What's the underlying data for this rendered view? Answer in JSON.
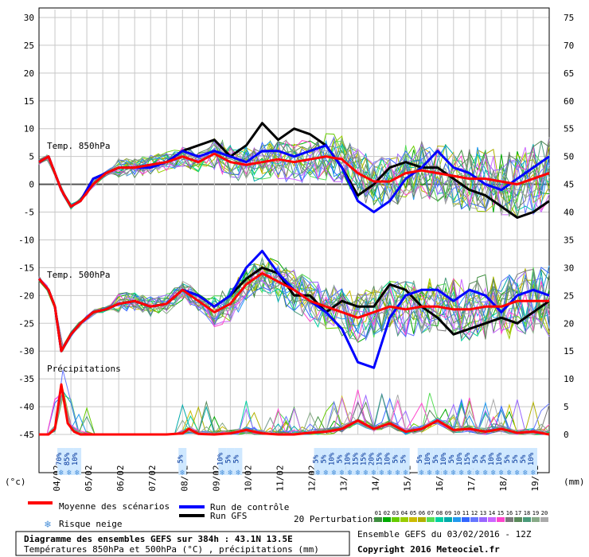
{
  "header": {
    "ylabel_left": "(°c)",
    "ylabel_right": "(mm)"
  },
  "panel_labels": {
    "t850": "Temp. 850hPa",
    "t500": "Temp. 500hPa",
    "precip": "Précipitations"
  },
  "legend": {
    "mean": "Moyenne des scénarios",
    "control": "Run de contrôle",
    "gfs": "Run GFS",
    "snow": "Risque neige",
    "perturbations": "20 Perturbations",
    "pert_ids": [
      "01",
      "02",
      "03",
      "04",
      "05",
      "06",
      "07",
      "08",
      "09",
      "10",
      "11",
      "12",
      "13",
      "14",
      "15",
      "16",
      "17",
      "18",
      "19",
      "20"
    ]
  },
  "footer": {
    "title": "Diagramme des ensembles GEFS sur 384h : 43.1N 13.5E",
    "subtitle": "Températures 850hPa et 500hPa (°C) , précipitations (mm)",
    "run": "Ensemble GEFS du 03/02/2016 - 12Z",
    "copyright": "Copyright 2016 Meteociel.fr"
  },
  "colors": {
    "mean": "#ff0000",
    "control": "#0000ff",
    "gfs": "#000000"
  },
  "chart_data": {
    "type": "line",
    "x_labels": [
      "04/02",
      "05/02",
      "06/02",
      "07/02",
      "08/02",
      "09/02",
      "10/02",
      "11/02",
      "12/02",
      "13/02",
      "14/02",
      "15/02",
      "16/02",
      "17/02",
      "18/02",
      "19/02"
    ],
    "x_day_start": 3.5,
    "x_day_end": 19.5,
    "ylim_left": [
      -45,
      30
    ],
    "yticks_left": [
      30,
      25,
      20,
      15,
      10,
      5,
      0,
      -5,
      -10,
      -15,
      -20,
      -25,
      -30,
      -35,
      -40,
      -45
    ],
    "yticks_right": [
      75,
      70,
      65,
      60,
      55,
      50,
      45,
      40,
      35,
      30,
      25,
      20,
      15,
      10,
      5,
      0
    ],
    "snow_risk": [
      {
        "day": 4.2,
        "pct": "70%"
      },
      {
        "day": 4.45,
        "pct": "85%"
      },
      {
        "day": 4.7,
        "pct": "10%"
      },
      {
        "day": 8.0,
        "pct": "5%"
      },
      {
        "day": 9.25,
        "pct": "10%"
      },
      {
        "day": 9.5,
        "pct": "5%"
      },
      {
        "day": 9.75,
        "pct": "5%"
      },
      {
        "day": 12.25,
        "pct": "5%"
      },
      {
        "day": 12.5,
        "pct": "5%"
      },
      {
        "day": 12.75,
        "pct": "10%"
      },
      {
        "day": 13.0,
        "pct": "5%"
      },
      {
        "day": 13.25,
        "pct": "10%"
      },
      {
        "day": 13.5,
        "pct": "15%"
      },
      {
        "day": 13.75,
        "pct": "15%"
      },
      {
        "day": 14.0,
        "pct": "20%"
      },
      {
        "day": 14.25,
        "pct": "15%"
      },
      {
        "day": 14.5,
        "pct": "10%"
      },
      {
        "day": 14.75,
        "pct": "5%"
      },
      {
        "day": 15.0,
        "pct": "5%"
      },
      {
        "day": 15.5,
        "pct": "5%"
      },
      {
        "day": 15.75,
        "pct": "10%"
      },
      {
        "day": 16.0,
        "pct": "5%"
      },
      {
        "day": 16.25,
        "pct": "10%"
      },
      {
        "day": 16.5,
        "pct": "5%"
      },
      {
        "day": 16.75,
        "pct": "10%"
      },
      {
        "day": 17.0,
        "pct": "15%"
      },
      {
        "day": 17.25,
        "pct": "5%"
      },
      {
        "day": 17.5,
        "pct": "5%"
      },
      {
        "day": 17.75,
        "pct": "10%"
      },
      {
        "day": 18.0,
        "pct": "10%"
      },
      {
        "day": 18.25,
        "pct": "5%"
      },
      {
        "day": 18.5,
        "pct": "5%"
      },
      {
        "day": 18.75,
        "pct": "5%"
      },
      {
        "day": 19.0,
        "pct": "10%"
      }
    ],
    "series": [
      {
        "name": "Moyenne des scénarios",
        "panel": "t850",
        "days": [
          3.5,
          3.8,
          4.2,
          4.5,
          4.8,
          5.2,
          5.6,
          6.0,
          6.5,
          7.0,
          7.5,
          8.0,
          8.5,
          9.0,
          9.5,
          10.0,
          10.5,
          11.0,
          11.5,
          12.0,
          12.5,
          13.0,
          13.5,
          14.0,
          14.5,
          15.0,
          15.5,
          16.0,
          16.5,
          17.0,
          17.5,
          18.0,
          18.5,
          19.0,
          19.5
        ],
        "values": [
          4,
          5,
          -1,
          -4,
          -3,
          0,
          2,
          3,
          3,
          3.5,
          4,
          5,
          4,
          5.5,
          4,
          3.5,
          4,
          4.5,
          4,
          4.5,
          5,
          4.5,
          2,
          0.5,
          0.5,
          2,
          2.5,
          2,
          1.5,
          1,
          1,
          0.5,
          0,
          1,
          2
        ]
      },
      {
        "name": "Run de contrôle",
        "panel": "t850",
        "days": [
          3.5,
          3.8,
          4.2,
          4.5,
          4.8,
          5.2,
          5.6,
          6.0,
          6.5,
          7.0,
          7.5,
          8.0,
          8.5,
          9.0,
          9.5,
          10.0,
          10.5,
          11.0,
          11.5,
          12.0,
          12.5,
          13.0,
          13.5,
          14.0,
          14.5,
          15.0,
          15.5,
          16.0,
          16.5,
          17.0,
          17.5,
          18.0,
          18.5,
          19.0,
          19.5
        ],
        "values": [
          4,
          5,
          -1,
          -4,
          -3,
          1,
          2,
          3,
          3,
          3,
          4,
          6,
          5,
          6,
          5,
          4,
          6,
          6,
          5,
          6,
          7,
          3,
          -3,
          -5,
          -3,
          1,
          3,
          6,
          3,
          2,
          0,
          -1,
          1,
          3,
          5
        ]
      },
      {
        "name": "Run GFS",
        "panel": "t850",
        "days": [
          3.5,
          3.8,
          4.2,
          4.5,
          4.8,
          5.2,
          5.6,
          6.0,
          6.5,
          7.0,
          7.5,
          8.0,
          8.5,
          9.0,
          9.5,
          10.0,
          10.5,
          11.0,
          11.5,
          12.0,
          12.5,
          13.0,
          13.5,
          14.0,
          14.5,
          15.0,
          15.5,
          16.0,
          16.5,
          17.0,
          17.5,
          18.0,
          18.5,
          19.0,
          19.5
        ],
        "values": [
          4,
          5,
          -1,
          -4,
          -3,
          1,
          2,
          3,
          3,
          3.5,
          4,
          6,
          7,
          8,
          5,
          7,
          11,
          8,
          10,
          9,
          7,
          3,
          -2,
          0,
          3,
          4,
          3,
          3,
          1,
          -1,
          -2,
          -4,
          -6,
          -5,
          -3
        ]
      },
      {
        "name": "Moyenne des scénarios",
        "panel": "t500",
        "days": [
          3.5,
          3.8,
          4.0,
          4.2,
          4.5,
          4.8,
          5.2,
          5.6,
          6.0,
          6.5,
          7.0,
          7.5,
          8.0,
          8.5,
          9.0,
          9.5,
          10.0,
          10.5,
          11.0,
          11.5,
          12.0,
          12.5,
          13.0,
          13.5,
          14.0,
          14.5,
          15.0,
          15.5,
          16.0,
          16.5,
          17.0,
          17.5,
          18.0,
          18.5,
          19.0,
          19.5
        ],
        "values": [
          -17,
          -19,
          -22,
          -30,
          -27,
          -25,
          -23,
          -22.5,
          -21.5,
          -21,
          -22,
          -21.5,
          -19,
          -21,
          -23,
          -21.5,
          -18,
          -16,
          -17.5,
          -19,
          -21,
          -22,
          -23,
          -24,
          -23,
          -22,
          -22.5,
          -22,
          -22,
          -22.5,
          -22.5,
          -22,
          -22,
          -21,
          -21,
          -21
        ]
      },
      {
        "name": "Run de contrôle",
        "panel": "t500",
        "days": [
          3.5,
          3.8,
          4.0,
          4.2,
          4.5,
          4.8,
          5.2,
          5.6,
          6.0,
          6.5,
          7.0,
          7.5,
          8.0,
          8.5,
          9.0,
          9.5,
          10.0,
          10.5,
          11.0,
          11.5,
          12.0,
          12.5,
          13.0,
          13.5,
          14.0,
          14.5,
          15.0,
          15.5,
          16.0,
          16.5,
          17.0,
          17.5,
          18.0,
          18.5,
          19.0,
          19.5
        ],
        "values": [
          -17,
          -19,
          -22,
          -30,
          -27,
          -25,
          -23,
          -22.5,
          -21.5,
          -21,
          -22,
          -21.5,
          -19,
          -20,
          -22,
          -20,
          -15,
          -12,
          -16,
          -19,
          -21,
          -23,
          -26,
          -32,
          -33,
          -24,
          -20,
          -19,
          -19,
          -21,
          -19,
          -20,
          -23,
          -20,
          -19,
          -20
        ]
      },
      {
        "name": "Run GFS",
        "panel": "t500",
        "days": [
          3.5,
          3.8,
          4.0,
          4.2,
          4.5,
          4.8,
          5.2,
          5.6,
          6.0,
          6.5,
          7.0,
          7.5,
          8.0,
          8.5,
          9.0,
          9.5,
          10.0,
          10.5,
          11.0,
          11.5,
          12.0,
          12.5,
          13.0,
          13.5,
          14.0,
          14.5,
          15.0,
          15.5,
          16.0,
          16.5,
          17.0,
          17.5,
          18.0,
          18.5,
          19.0,
          19.5
        ],
        "values": [
          -17,
          -19,
          -22,
          -30,
          -27,
          -25,
          -23,
          -22.5,
          -21.5,
          -21,
          -22,
          -21.5,
          -19,
          -20,
          -22,
          -20,
          -17,
          -15,
          -16,
          -20,
          -20,
          -23,
          -21,
          -22,
          -22,
          -18,
          -19,
          -22,
          -24,
          -27,
          -26,
          -25,
          -24,
          -25,
          -23,
          -21
        ]
      },
      {
        "name": "Moyenne des scénarios",
        "panel": "precip",
        "days": [
          3.5,
          3.8,
          4.0,
          4.2,
          4.4,
          4.6,
          4.8,
          5.0,
          6.0,
          7.0,
          7.5,
          8.0,
          8.2,
          8.5,
          9.0,
          9.5,
          10.0,
          10.5,
          11.0,
          11.5,
          12.0,
          12.5,
          13.0,
          13.5,
          14.0,
          14.5,
          15.0,
          15.5,
          16.0,
          16.5,
          17.0,
          17.5,
          18.0,
          18.5,
          19.0,
          19.5
        ],
        "values": [
          0,
          0,
          1,
          9,
          2,
          0.5,
          0,
          0,
          0,
          0,
          0,
          0.2,
          1,
          0.1,
          0,
          0.2,
          0.8,
          0.2,
          0,
          0,
          0.3,
          0.5,
          1,
          2.5,
          1,
          2,
          0.5,
          1,
          2.5,
          0.8,
          1,
          0.5,
          1,
          0.3,
          0.5,
          0
        ]
      }
    ]
  }
}
